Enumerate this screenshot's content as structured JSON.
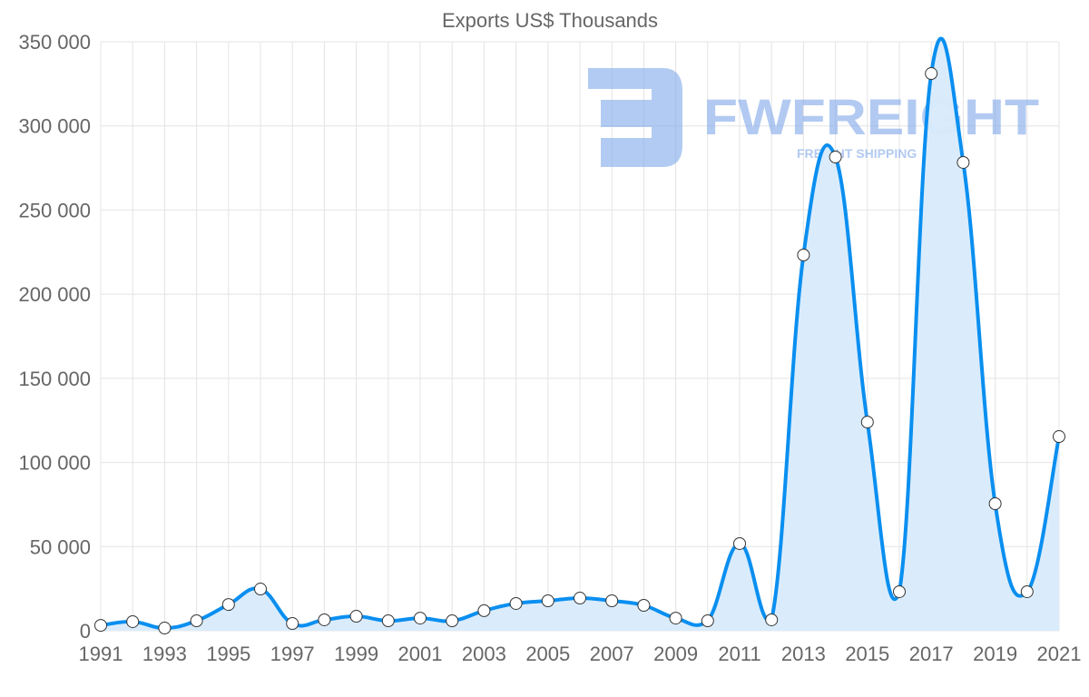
{
  "chart_data": {
    "type": "line",
    "title": "Exports US$ Thousands",
    "xlabel": "",
    "ylabel": "",
    "ylim": [
      0,
      350000
    ],
    "yticks": [
      0,
      50000,
      100000,
      150000,
      200000,
      250000,
      300000,
      350000
    ],
    "ytick_labels": [
      "0",
      "50 000",
      "100 000",
      "150 000",
      "200 000",
      "250 000",
      "300 000",
      "350 000"
    ],
    "xtick_labels": [
      "1991",
      "1993",
      "1995",
      "1997",
      "1999",
      "2001",
      "2003",
      "2005",
      "2007",
      "2009",
      "2011",
      "2013",
      "2015",
      "2017",
      "2019",
      "2021"
    ],
    "grid": true,
    "legend": "none",
    "area_fill": true,
    "series": [
      {
        "name": "Exports US$ Thousands",
        "color": "#0a8ff0",
        "fill": "#d8ebfc",
        "x": [
          1991,
          1992,
          1993,
          1994,
          1995,
          1996,
          1997,
          1998,
          1999,
          2000,
          2001,
          2002,
          2003,
          2004,
          2005,
          2006,
          2007,
          2008,
          2009,
          2010,
          2011,
          2012,
          2013,
          2014,
          2015,
          2016,
          2017,
          2018,
          2019,
          2020,
          2021
        ],
        "values": [
          3200,
          5400,
          1600,
          5900,
          15600,
          24800,
          4300,
          6500,
          8600,
          5900,
          7500,
          5900,
          11900,
          16200,
          17800,
          19400,
          17800,
          15100,
          7500,
          5900,
          51800,
          6500,
          223300,
          281500,
          124000,
          23200,
          331100,
          278300,
          75500,
          23200,
          115400
        ]
      }
    ]
  },
  "watermark": {
    "brand": "FWFREIGHT",
    "tagline": "FREIGHT SHIPPING",
    "color": "#7fa8ea"
  }
}
